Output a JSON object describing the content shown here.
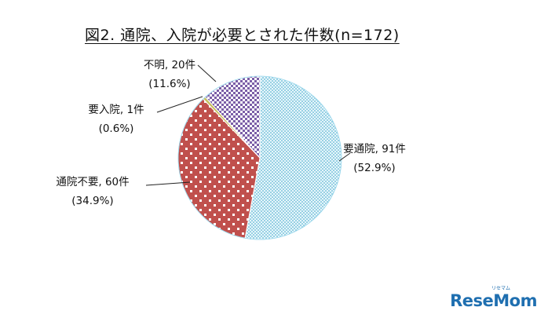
{
  "title": "図2. 通院、入院が必要とされた件数(n=172)",
  "watermark": {
    "brand": "ReseMom",
    "small_text": "リセマム"
  },
  "chart_data": {
    "type": "pie",
    "title": "図2. 通院、入院が必要とされた件数(n=172)",
    "n": 172,
    "slices": [
      {
        "label": "要通院, 91件",
        "value": 91,
        "percent": "(52.9%)",
        "color": "#8fd3ea",
        "pattern": "dots-blue"
      },
      {
        "label": "通院不要, 60件",
        "value": 60,
        "percent": "(34.9%)",
        "color": "#c0504d",
        "pattern": "squares-red"
      },
      {
        "label": "要入院, 1件",
        "value": 1,
        "percent": "(0.6%)",
        "color": "#c8c060",
        "pattern": "solid-olive"
      },
      {
        "label": "不明, 20件",
        "value": 20,
        "percent": "(11.6%)",
        "color": "#7b5ea7",
        "pattern": "checker-purple"
      }
    ],
    "start": "12 o'clock",
    "direction": "clockwise"
  }
}
